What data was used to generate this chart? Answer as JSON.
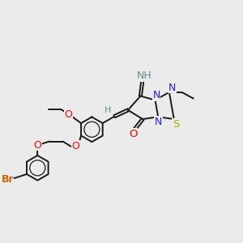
{
  "background_color": "#ebebeb",
  "bond_color": "#1a1a1a",
  "bond_lw": 1.4,
  "br_color": "#cc6600",
  "o_color": "#ff0000",
  "n_color": "#2222cc",
  "s_color": "#aaaa00",
  "h_color": "#5a9090",
  "imine_color": "#2222cc",
  "font_size": 8.5,
  "xlim": [
    0.0,
    10.5
  ],
  "ylim": [
    0.8,
    7.5
  ]
}
